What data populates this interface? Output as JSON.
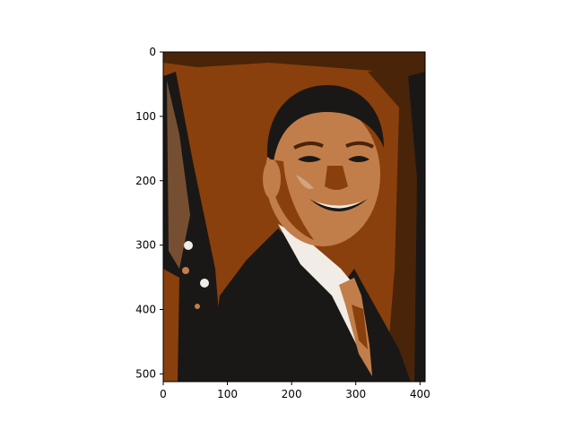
{
  "chart_data": {
    "type": "heatmap",
    "title": "",
    "xlabel": "",
    "ylabel": "",
    "xlim": [
      0,
      408
    ],
    "ylim": [
      512,
      0
    ],
    "x_ticks": [
      0,
      100,
      200,
      300,
      400
    ],
    "y_ticks": [
      0,
      100,
      200,
      300,
      400,
      500
    ],
    "image": "posterized portrait in a five-tone brown palette",
    "palette": [
      "#1a1816",
      "#4a2408",
      "#8a400c",
      "#c27e4a",
      "#f2ece6"
    ]
  }
}
